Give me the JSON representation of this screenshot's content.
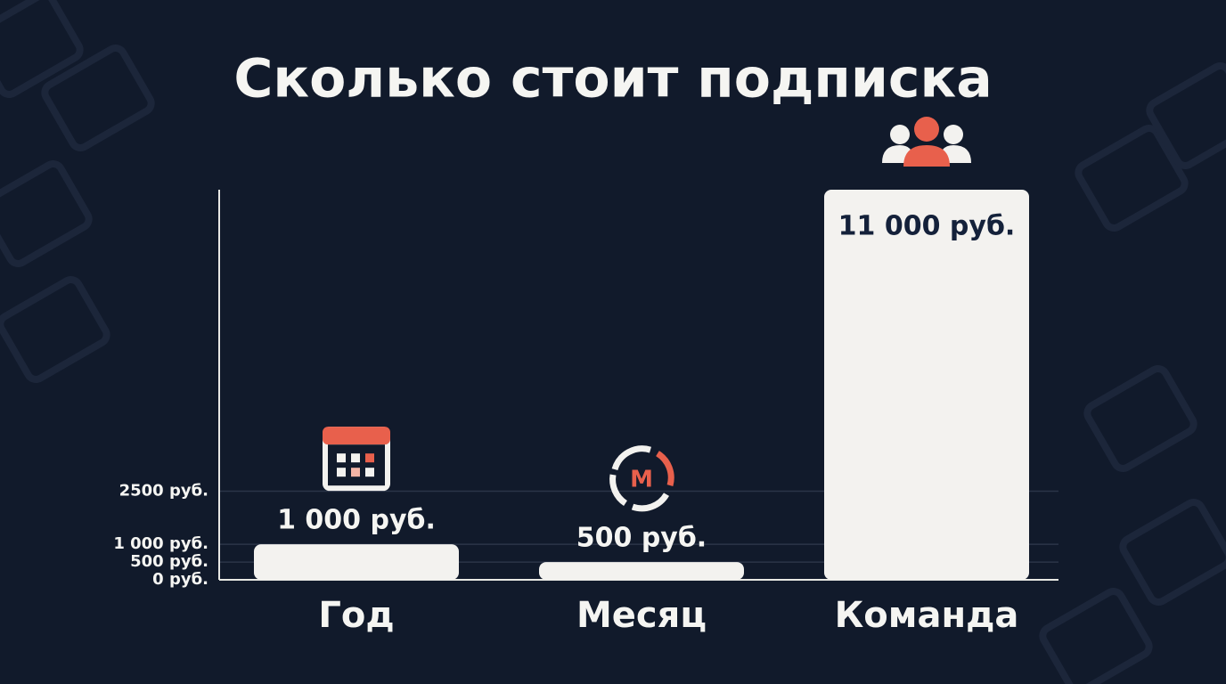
{
  "chart_data": {
    "type": "bar",
    "title": "Сколько стоит подписка",
    "categories": [
      "Год",
      "Месяц",
      "Команда"
    ],
    "values": [
      1000,
      500,
      11000
    ],
    "value_labels": [
      "1 000 руб.",
      "500 руб.",
      "11 000 руб."
    ],
    "color": "#f3f2ef",
    "ylim": [
      0,
      11000
    ],
    "yticks": [
      {
        "value": 0,
        "label": "0 руб."
      },
      {
        "value": 500,
        "label": "500 руб."
      },
      {
        "value": 1000,
        "label": "1 000 руб."
      },
      {
        "value": 2500,
        "label": "2500 руб."
      }
    ],
    "grid": true,
    "icon_letter": "М"
  }
}
